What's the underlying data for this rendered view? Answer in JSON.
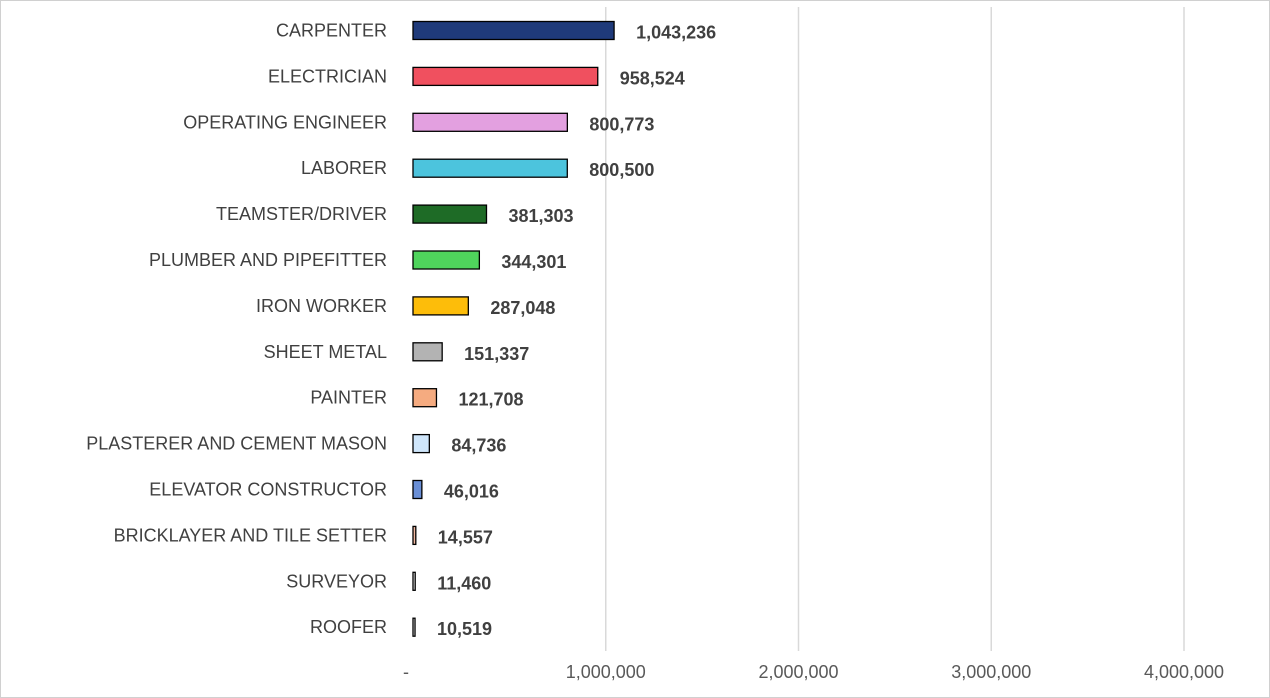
{
  "chart_data": {
    "type": "bar",
    "orientation": "horizontal",
    "title": "",
    "xlabel": "",
    "ylabel": "",
    "xlim": [
      0,
      4000000
    ],
    "grid": true,
    "legend": "none",
    "categories": [
      "CARPENTER",
      "ELECTRICIAN",
      "OPERATING ENGINEER",
      "LABORER",
      "TEAMSTER/DRIVER",
      "PLUMBER AND PIPEFITTER",
      "IRON WORKER",
      "SHEET METAL",
      "PAINTER",
      "PLASTERER AND CEMENT MASON",
      "ELEVATOR CONSTRUCTOR",
      "BRICKLAYER AND TILE SETTER",
      "SURVEYOR",
      "ROOFER"
    ],
    "values": [
      1043236,
      958524,
      800773,
      800500,
      381303,
      344301,
      287048,
      151337,
      121708,
      84736,
      46016,
      14557,
      11460,
      10519
    ],
    "data_labels": [
      "1,043,236",
      "958,524",
      "800,773",
      "800,500",
      "381,303",
      "344,301",
      "287,048",
      "151,337",
      "121,708",
      "84,736",
      "46,016",
      "14,557",
      "11,460",
      "10,519"
    ],
    "colors": [
      "#1f3a7a",
      "#f0505f",
      "#e3a0e0",
      "#4cc4dd",
      "#1e6b26",
      "#4fd45c",
      "#fdbd0a",
      "#b3b3b3",
      "#f5ab80",
      "#cfe6fb",
      "#6a8fd6",
      "#f0b8a0",
      "#e8e8e8",
      "#e8e8e8"
    ],
    "x_ticks": [
      0,
      1000000,
      2000000,
      3000000,
      4000000
    ],
    "x_tick_labels": [
      "-",
      "1,000,000",
      "2,000,000",
      "3,000,000",
      "4,000,000"
    ]
  }
}
